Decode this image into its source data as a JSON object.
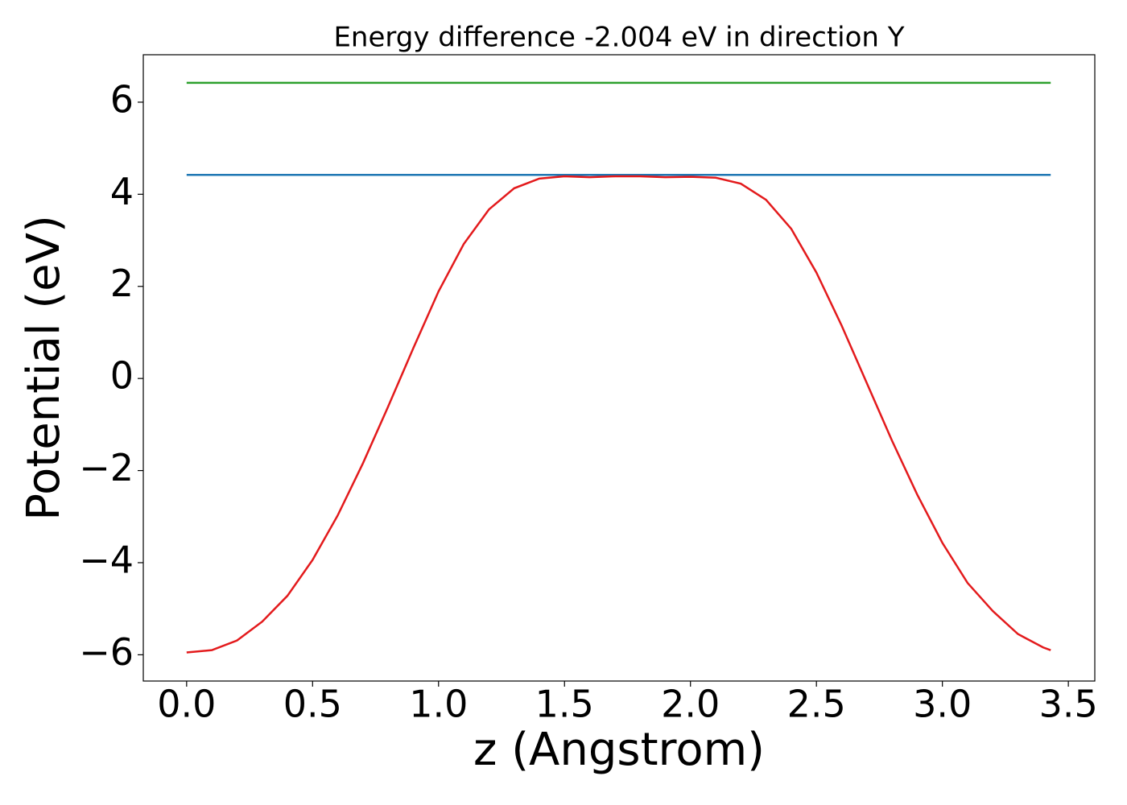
{
  "chart_data": {
    "type": "line",
    "title": "Energy difference -2.004 eV in direction Y",
    "x_label": "z (Angstrom)",
    "y_label": "Potential (eV)",
    "xlim": [
      -0.172,
      3.605
    ],
    "ylim": [
      -6.57,
      7.03
    ],
    "xticks": [
      {
        "value": 0,
        "label": "0.0"
      },
      {
        "value": 0.5,
        "label": "0.5"
      },
      {
        "value": 1,
        "label": "1.0"
      },
      {
        "value": 1.5,
        "label": "1.5"
      },
      {
        "value": 2,
        "label": "2.0"
      },
      {
        "value": 2.5,
        "label": "2.5"
      },
      {
        "value": 3,
        "label": "3.0"
      },
      {
        "value": 3.5,
        "label": "3.5"
      }
    ],
    "yticks": [
      {
        "value": -6,
        "label": "−6"
      },
      {
        "value": -4,
        "label": "−4"
      },
      {
        "value": -2,
        "label": "−2"
      },
      0,
      2,
      4,
      6
    ],
    "series": [
      {
        "color": "#2ca02c",
        "x": [
          0,
          3.43
        ],
        "values": [
          6.42,
          6.42
        ]
      },
      {
        "color": "#1f77b4",
        "x": [
          0,
          3.43
        ],
        "values": [
          4.42,
          4.42
        ]
      },
      {
        "color": "#e31a1c",
        "x": [
          0,
          0.1,
          0.2,
          0.3,
          0.4,
          0.5,
          0.6,
          0.7,
          0.8,
          0.9,
          1.0,
          1.1,
          1.2,
          1.3,
          1.4,
          1.5,
          1.6,
          1.7,
          1.8,
          1.9,
          2.0,
          2.1,
          2.2,
          2.3,
          2.4,
          2.5,
          2.6,
          2.7,
          2.8,
          2.9,
          3.0,
          3.1,
          3.2,
          3.3,
          3.4,
          3.43
        ],
        "values": [
          -5.95,
          -5.9,
          -5.69,
          -5.28,
          -4.72,
          -3.94,
          -2.97,
          -1.84,
          -0.61,
          0.66,
          1.89,
          2.92,
          3.67,
          4.13,
          4.34,
          4.39,
          4.37,
          4.39,
          4.39,
          4.37,
          4.38,
          4.36,
          4.23,
          3.88,
          3.25,
          2.3,
          1.15,
          -0.1,
          -1.35,
          -2.52,
          -3.57,
          -4.44,
          -5.05,
          -5.55,
          -5.84,
          -5.9
        ]
      }
    ]
  }
}
